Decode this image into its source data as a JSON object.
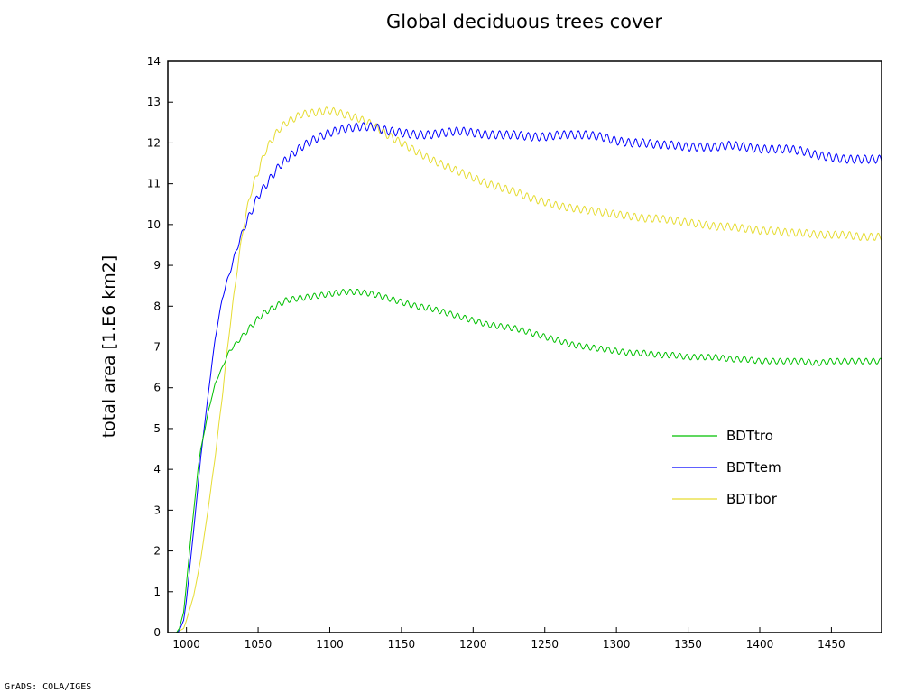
{
  "chart_data": {
    "type": "line",
    "title": "Global deciduous trees cover",
    "xlabel": "",
    "ylabel": "total area [1.E6 km2]",
    "xlim": [
      987,
      1485
    ],
    "ylim": [
      0,
      14
    ],
    "xticks": [
      1000,
      1050,
      1100,
      1150,
      1200,
      1250,
      1300,
      1350,
      1400,
      1450
    ],
    "yticks": [
      0,
      1,
      2,
      3,
      4,
      5,
      6,
      7,
      8,
      9,
      10,
      11,
      12,
      13,
      14
    ],
    "grid": false,
    "legend": "lower-right inside plot",
    "credit": "GrADS: COLA/IGES",
    "series": [
      {
        "name": "BDTtro",
        "color": "#00c000",
        "oscillation": 0.07,
        "points": [
          [
            993,
            0
          ],
          [
            995,
            0.1
          ],
          [
            998,
            0.5
          ],
          [
            1000,
            1.2
          ],
          [
            1003,
            2.3
          ],
          [
            1006,
            3.3
          ],
          [
            1008,
            4.0
          ],
          [
            1010,
            4.5
          ],
          [
            1013,
            5.0
          ],
          [
            1015,
            5.4
          ],
          [
            1018,
            5.8
          ],
          [
            1020,
            6.1
          ],
          [
            1025,
            6.5
          ],
          [
            1030,
            6.9
          ],
          [
            1035,
            7.1
          ],
          [
            1040,
            7.3
          ],
          [
            1045,
            7.5
          ],
          [
            1050,
            7.7
          ],
          [
            1055,
            7.85
          ],
          [
            1060,
            7.95
          ],
          [
            1065,
            8.05
          ],
          [
            1070,
            8.15
          ],
          [
            1080,
            8.2
          ],
          [
            1090,
            8.25
          ],
          [
            1100,
            8.3
          ],
          [
            1110,
            8.35
          ],
          [
            1120,
            8.35
          ],
          [
            1130,
            8.3
          ],
          [
            1140,
            8.2
          ],
          [
            1150,
            8.1
          ],
          [
            1160,
            8.0
          ],
          [
            1170,
            7.95
          ],
          [
            1180,
            7.85
          ],
          [
            1190,
            7.75
          ],
          [
            1200,
            7.65
          ],
          [
            1210,
            7.55
          ],
          [
            1220,
            7.5
          ],
          [
            1230,
            7.45
          ],
          [
            1240,
            7.35
          ],
          [
            1250,
            7.25
          ],
          [
            1260,
            7.15
          ],
          [
            1270,
            7.05
          ],
          [
            1280,
            7.0
          ],
          [
            1290,
            6.95
          ],
          [
            1300,
            6.9
          ],
          [
            1310,
            6.85
          ],
          [
            1320,
            6.85
          ],
          [
            1330,
            6.8
          ],
          [
            1340,
            6.8
          ],
          [
            1350,
            6.75
          ],
          [
            1360,
            6.75
          ],
          [
            1370,
            6.75
          ],
          [
            1380,
            6.7
          ],
          [
            1390,
            6.7
          ],
          [
            1400,
            6.65
          ],
          [
            1410,
            6.65
          ],
          [
            1420,
            6.65
          ],
          [
            1430,
            6.65
          ],
          [
            1440,
            6.6
          ],
          [
            1450,
            6.65
          ],
          [
            1460,
            6.65
          ],
          [
            1470,
            6.65
          ],
          [
            1485,
            6.65
          ]
        ]
      },
      {
        "name": "BDTtem",
        "color": "#0000ff",
        "oscillation": 0.1,
        "points": [
          [
            993,
            0
          ],
          [
            995,
            0.05
          ],
          [
            998,
            0.3
          ],
          [
            1000,
            0.8
          ],
          [
            1005,
            2.5
          ],
          [
            1010,
            4.3
          ],
          [
            1015,
            5.8
          ],
          [
            1020,
            7.2
          ],
          [
            1025,
            8.2
          ],
          [
            1030,
            8.8
          ],
          [
            1035,
            9.4
          ],
          [
            1040,
            9.9
          ],
          [
            1045,
            10.3
          ],
          [
            1050,
            10.7
          ],
          [
            1055,
            10.95
          ],
          [
            1060,
            11.2
          ],
          [
            1065,
            11.45
          ],
          [
            1070,
            11.6
          ],
          [
            1075,
            11.75
          ],
          [
            1080,
            11.9
          ],
          [
            1085,
            12.0
          ],
          [
            1090,
            12.1
          ],
          [
            1100,
            12.25
          ],
          [
            1110,
            12.35
          ],
          [
            1120,
            12.4
          ],
          [
            1130,
            12.4
          ],
          [
            1140,
            12.3
          ],
          [
            1150,
            12.25
          ],
          [
            1160,
            12.2
          ],
          [
            1170,
            12.2
          ],
          [
            1180,
            12.25
          ],
          [
            1190,
            12.3
          ],
          [
            1200,
            12.25
          ],
          [
            1210,
            12.2
          ],
          [
            1220,
            12.2
          ],
          [
            1230,
            12.2
          ],
          [
            1240,
            12.15
          ],
          [
            1250,
            12.15
          ],
          [
            1260,
            12.2
          ],
          [
            1270,
            12.2
          ],
          [
            1280,
            12.2
          ],
          [
            1290,
            12.15
          ],
          [
            1300,
            12.05
          ],
          [
            1310,
            12.0
          ],
          [
            1320,
            12.0
          ],
          [
            1330,
            11.95
          ],
          [
            1340,
            11.95
          ],
          [
            1350,
            11.9
          ],
          [
            1360,
            11.9
          ],
          [
            1370,
            11.9
          ],
          [
            1380,
            11.95
          ],
          [
            1390,
            11.9
          ],
          [
            1400,
            11.85
          ],
          [
            1410,
            11.85
          ],
          [
            1420,
            11.85
          ],
          [
            1430,
            11.8
          ],
          [
            1440,
            11.7
          ],
          [
            1450,
            11.65
          ],
          [
            1460,
            11.6
          ],
          [
            1470,
            11.6
          ],
          [
            1485,
            11.6
          ]
        ]
      },
      {
        "name": "BDTbor",
        "color": "#e6dc32",
        "oscillation": 0.09,
        "points": [
          [
            993,
            0
          ],
          [
            998,
            0.1
          ],
          [
            1000,
            0.3
          ],
          [
            1005,
            0.9
          ],
          [
            1010,
            1.8
          ],
          [
            1015,
            3.0
          ],
          [
            1020,
            4.3
          ],
          [
            1025,
            5.8
          ],
          [
            1030,
            7.4
          ],
          [
            1035,
            8.8
          ],
          [
            1040,
            10.0
          ],
          [
            1045,
            10.8
          ],
          [
            1050,
            11.3
          ],
          [
            1055,
            11.8
          ],
          [
            1060,
            12.1
          ],
          [
            1065,
            12.35
          ],
          [
            1070,
            12.5
          ],
          [
            1075,
            12.6
          ],
          [
            1080,
            12.7
          ],
          [
            1090,
            12.75
          ],
          [
            1100,
            12.8
          ],
          [
            1110,
            12.7
          ],
          [
            1120,
            12.6
          ],
          [
            1130,
            12.45
          ],
          [
            1140,
            12.2
          ],
          [
            1150,
            12.0
          ],
          [
            1160,
            11.8
          ],
          [
            1170,
            11.6
          ],
          [
            1180,
            11.45
          ],
          [
            1190,
            11.3
          ],
          [
            1200,
            11.15
          ],
          [
            1210,
            11.0
          ],
          [
            1220,
            10.9
          ],
          [
            1230,
            10.8
          ],
          [
            1240,
            10.65
          ],
          [
            1250,
            10.55
          ],
          [
            1260,
            10.45
          ],
          [
            1270,
            10.4
          ],
          [
            1280,
            10.35
          ],
          [
            1290,
            10.3
          ],
          [
            1300,
            10.25
          ],
          [
            1310,
            10.2
          ],
          [
            1320,
            10.15
          ],
          [
            1330,
            10.15
          ],
          [
            1340,
            10.1
          ],
          [
            1350,
            10.05
          ],
          [
            1360,
            10.0
          ],
          [
            1370,
            9.95
          ],
          [
            1380,
            9.95
          ],
          [
            1390,
            9.9
          ],
          [
            1400,
            9.85
          ],
          [
            1410,
            9.85
          ],
          [
            1420,
            9.8
          ],
          [
            1430,
            9.8
          ],
          [
            1440,
            9.75
          ],
          [
            1450,
            9.75
          ],
          [
            1460,
            9.75
          ],
          [
            1470,
            9.7
          ],
          [
            1485,
            9.7
          ]
        ]
      }
    ]
  }
}
